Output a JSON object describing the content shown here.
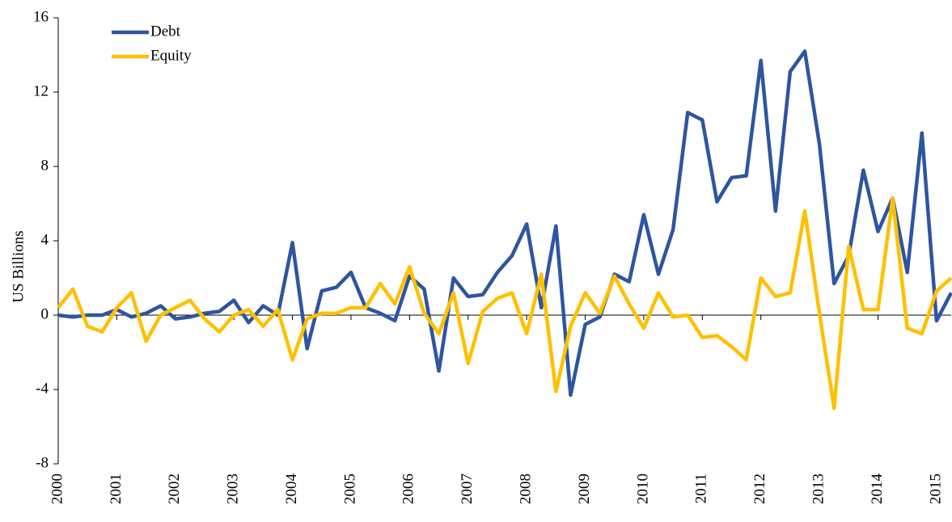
{
  "chart_data": {
    "type": "line",
    "y_label": "US Billions",
    "x": [
      2000,
      2000.25,
      2000.5,
      2000.75,
      2001,
      2001.25,
      2001.5,
      2001.75,
      2002,
      2002.25,
      2002.5,
      2002.75,
      2003,
      2003.25,
      2003.5,
      2003.75,
      2004,
      2004.25,
      2004.5,
      2004.75,
      2005,
      2005.25,
      2005.5,
      2005.75,
      2006,
      2006.25,
      2006.5,
      2006.75,
      2007,
      2007.25,
      2007.5,
      2007.75,
      2008,
      2008.25,
      2008.5,
      2008.75,
      2009,
      2009.25,
      2009.5,
      2009.75,
      2010,
      2010.25,
      2010.5,
      2010.75,
      2011,
      2011.25,
      2011.5,
      2011.75,
      2012,
      2012.25,
      2012.5,
      2012.75,
      2013,
      2013.25,
      2013.5,
      2013.75,
      2014,
      2014.25,
      2014.5,
      2014.75,
      2015,
      2015.25
    ],
    "series": [
      {
        "name": "Debt",
        "color": "#2e55a0",
        "values": [
          0,
          -0.1,
          0,
          0,
          0.3,
          -0.1,
          0.1,
          0.5,
          -0.2,
          -0.1,
          0.1,
          0.2,
          0.8,
          -0.4,
          0.5,
          0,
          3.9,
          -1.8,
          1.3,
          1.5,
          2.3,
          0.4,
          0.1,
          -0.3,
          2.1,
          1.4,
          -3.0,
          2.0,
          1.0,
          1.1,
          2.3,
          3.2,
          4.9,
          0.4,
          4.8,
          -4.3,
          -0.5,
          -0.1,
          2.2,
          1.8,
          5.4,
          2.2,
          4.6,
          10.9,
          10.5,
          6.1,
          7.4,
          7.5,
          13.7,
          5.6,
          13.1,
          14.2,
          9.2,
          1.7,
          3.2,
          7.8,
          4.5,
          6.3,
          2.3,
          9.8,
          -0.3,
          1.2
        ]
      },
      {
        "name": "Equity",
        "color": "#ffc000",
        "values": [
          0.4,
          1.4,
          -0.6,
          -0.9,
          0.4,
          1.2,
          -1.4,
          0,
          0.4,
          0.8,
          -0.2,
          -0.9,
          0,
          0.3,
          -0.6,
          0.3,
          -2.4,
          -0.2,
          0.1,
          0.1,
          0.4,
          0.4,
          1.7,
          0.6,
          2.6,
          0.1,
          -1.0,
          1.2,
          -2.6,
          0.2,
          0.9,
          1.2,
          -1.0,
          2.2,
          -4.1,
          -0.6,
          1.2,
          0.1,
          2.1,
          0.6,
          -0.7,
          1.2,
          -0.1,
          0,
          -1.2,
          -1.1,
          -1.7,
          -2.4,
          2.0,
          1.0,
          1.2,
          5.6,
          0.1,
          -5.0,
          3.7,
          0.3,
          0.3,
          6.3,
          -0.7,
          -1.0,
          1.3,
          2.0
        ]
      }
    ],
    "xlim": [
      2000,
      2015.25
    ],
    "xticks": [
      2000,
      2001,
      2002,
      2003,
      2004,
      2005,
      2006,
      2007,
      2008,
      2009,
      2010,
      2011,
      2012,
      2013,
      2014,
      2015
    ],
    "ylim": [
      -8,
      16
    ],
    "yticks": [
      -8,
      -4,
      0,
      4,
      8,
      12,
      16
    ],
    "legend": "upper left"
  }
}
